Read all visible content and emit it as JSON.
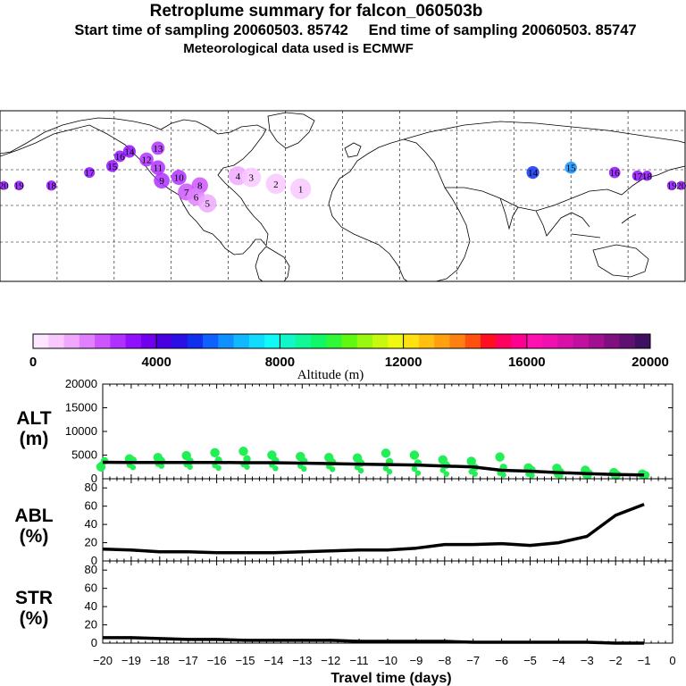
{
  "header": {
    "title": "Retroplume summary for falcon_060503b",
    "start_label": "Start time of sampling 20060503. 85742",
    "end_label": "End time of sampling 20060503. 85747",
    "met_label": "Meteorological data used is ECMWF"
  },
  "colors": {
    "alt_points": "#22ee55",
    "line": "#000000",
    "map_bg": "#ffffff"
  },
  "map": {
    "plume_labels": [
      {
        "id": "c20",
        "text": "20",
        "lon": -178,
        "lat": 44,
        "alt": 3200
      },
      {
        "id": "c19",
        "text": "19",
        "lon": -170,
        "lat": 44,
        "alt": 3000
      },
      {
        "id": "c18",
        "text": "18",
        "lon": -153,
        "lat": 44,
        "alt": 3300
      },
      {
        "id": "c17",
        "text": "17",
        "lon": -133,
        "lat": 52,
        "alt": 3100
      },
      {
        "id": "c16",
        "text": "16",
        "lon": -117,
        "lat": 62,
        "alt": 3300
      },
      {
        "id": "c15",
        "text": "15",
        "lon": -121,
        "lat": 56,
        "alt": 3100
      },
      {
        "id": "c14",
        "text": "14",
        "lon": -112,
        "lat": 65,
        "alt": 3000
      },
      {
        "id": "c13",
        "text": "13",
        "lon": -97,
        "lat": 67,
        "alt": 2800
      },
      {
        "id": "c12",
        "text": "12",
        "lon": -103,
        "lat": 60,
        "alt": 2900
      },
      {
        "id": "c11",
        "text": "11",
        "lon": -97,
        "lat": 55,
        "alt": 2800
      },
      {
        "id": "c10",
        "text": "10",
        "lon": -86,
        "lat": 49,
        "alt": 2700
      },
      {
        "id": "c9",
        "text": "9",
        "lon": -95,
        "lat": 47,
        "alt": 2500
      },
      {
        "id": "c8",
        "text": "8",
        "lon": -75,
        "lat": 44,
        "alt": 2300
      },
      {
        "id": "c7",
        "text": "7",
        "lon": -82,
        "lat": 40,
        "alt": 2000
      },
      {
        "id": "c6",
        "text": "6",
        "lon": -77,
        "lat": 37,
        "alt": 1500
      },
      {
        "id": "c5",
        "text": "5",
        "lon": -71,
        "lat": 33,
        "alt": 1300
      },
      {
        "id": "c4",
        "text": "4",
        "lon": -55,
        "lat": 50,
        "alt": 1000
      },
      {
        "id": "c3",
        "text": "3",
        "lon": -48,
        "lat": 49,
        "alt": 900
      },
      {
        "id": "c2",
        "text": "2",
        "lon": -35,
        "lat": 45,
        "alt": 800
      },
      {
        "id": "c1",
        "text": "1",
        "lon": -22,
        "lat": 42,
        "alt": 700
      },
      {
        "id": "a14",
        "text": "14",
        "lon": 100,
        "lat": 52,
        "alt": 5200
      },
      {
        "id": "a15",
        "text": "15",
        "lon": 120,
        "lat": 55,
        "alt": 6000
      },
      {
        "id": "a16",
        "text": "16",
        "lon": 143,
        "lat": 52,
        "alt": 3300
      },
      {
        "id": "a17",
        "text": "17",
        "lon": 155,
        "lat": 50,
        "alt": 3100
      },
      {
        "id": "a18",
        "text": "18",
        "lon": 160,
        "lat": 50,
        "alt": 3000
      },
      {
        "id": "a19",
        "text": "19",
        "lon": 173,
        "lat": 44,
        "alt": 3200
      },
      {
        "id": "a20",
        "text": "20",
        "lon": 178,
        "lat": 44,
        "alt": 3000
      }
    ]
  },
  "colorbar": {
    "ticks": [
      "0",
      "4000",
      "8000",
      "12000",
      "16000",
      "20000"
    ],
    "label": "Altitude (m)"
  },
  "chart_data": [
    {
      "type": "scatter",
      "name": "ALT",
      "ylabel": "ALT\n(m)",
      "ylabel_lines": [
        "ALT",
        "(m)"
      ],
      "ylim": [
        0,
        20000
      ],
      "yticks": [
        "0",
        "5000",
        "10000",
        "15000",
        "20000"
      ],
      "line": {
        "x": [
          -20,
          -19,
          -18,
          -17,
          -16,
          -15,
          -14,
          -13,
          -12,
          -11,
          -10,
          -9,
          -8,
          -7,
          -6,
          -5,
          -4,
          -3,
          -2,
          -1
        ],
        "y": [
          3500,
          3450,
          3450,
          3450,
          3450,
          3400,
          3400,
          3300,
          3200,
          3100,
          3000,
          2900,
          2700,
          2500,
          1800,
          1600,
          1300,
          1100,
          900,
          800
        ]
      },
      "points": [
        {
          "x": -20,
          "y": [
            3000,
            3800,
            2500
          ]
        },
        {
          "x": -19,
          "y": [
            2900,
            3900,
            4200,
            2400
          ]
        },
        {
          "x": -18,
          "y": [
            3100,
            3800,
            4500,
            2700
          ]
        },
        {
          "x": -17,
          "y": [
            3000,
            3700,
            4900,
            2500
          ]
        },
        {
          "x": -16,
          "y": [
            2800,
            3900,
            5500,
            2300
          ]
        },
        {
          "x": -15,
          "y": [
            3000,
            4200,
            5800,
            2500
          ]
        },
        {
          "x": -14,
          "y": [
            2900,
            3800,
            5000,
            2200
          ]
        },
        {
          "x": -13,
          "y": [
            2700,
            3700,
            4700,
            2100
          ]
        },
        {
          "x": -12,
          "y": [
            2600,
            3500,
            4500,
            2000
          ]
        },
        {
          "x": -11,
          "y": [
            2400,
            3300,
            4400,
            1700
          ]
        },
        {
          "x": -10,
          "y": [
            2200,
            3600,
            5400,
            1500
          ]
        },
        {
          "x": -9,
          "y": [
            2100,
            3300,
            5000,
            1200
          ]
        },
        {
          "x": -8,
          "y": [
            1800,
            2900,
            4000,
            1000
          ]
        },
        {
          "x": -7,
          "y": [
            1500,
            2400,
            3700,
            1000
          ]
        },
        {
          "x": -6,
          "y": [
            1200,
            2400,
            4600,
            800
          ]
        },
        {
          "x": -5,
          "y": [
            1000,
            1900,
            2300,
            700
          ]
        },
        {
          "x": -4,
          "y": [
            800,
            1500,
            2200,
            600
          ]
        },
        {
          "x": -3,
          "y": [
            700,
            1200,
            1800,
            500
          ]
        },
        {
          "x": -2,
          "y": [
            600,
            900,
            1300,
            400
          ]
        },
        {
          "x": -1,
          "y": [
            500,
            800,
            1000
          ]
        }
      ]
    },
    {
      "type": "line",
      "name": "ABL",
      "ylabel_lines": [
        "ABL",
        "(%)"
      ],
      "ylim": [
        0,
        90
      ],
      "yticks": [
        "0",
        "20",
        "40",
        "60",
        "80"
      ],
      "x": [
        -20,
        -19,
        -18,
        -17,
        -16,
        -15,
        -14,
        -13,
        -12,
        -11,
        -10,
        -9,
        -8,
        -7,
        -6,
        -5,
        -4,
        -3,
        -2,
        -1
      ],
      "y": [
        13,
        12,
        10,
        10,
        9,
        9,
        9,
        10,
        11,
        12,
        12,
        14,
        18,
        18,
        19,
        17,
        20,
        27,
        50,
        62
      ]
    },
    {
      "type": "line",
      "name": "STR",
      "ylabel_lines": [
        "STR",
        "(%)"
      ],
      "ylim": [
        0,
        90
      ],
      "yticks": [
        "0",
        "20",
        "40",
        "60",
        "80"
      ],
      "x": [
        -20,
        -19,
        -18,
        -17,
        -16,
        -15,
        -14,
        -13,
        -12,
        -11,
        -10,
        -9,
        -8,
        -7,
        -6,
        -5,
        -4,
        -3,
        -2,
        -1
      ],
      "y": [
        6,
        6,
        5,
        4,
        4,
        3,
        3,
        3,
        3,
        2,
        2,
        2,
        2,
        1,
        1,
        1,
        1,
        1,
        0,
        0
      ]
    }
  ],
  "xaxis": {
    "ticks": [
      "−20",
      "−19",
      "−18",
      "−17",
      "−16",
      "−15",
      "−14",
      "−13",
      "−12",
      "−11",
      "−10",
      "−9",
      "−8",
      "−7",
      "−6",
      "−5",
      "−4",
      "−3",
      "−2",
      "−1",
      "0"
    ],
    "label": "Travel time (days)"
  }
}
